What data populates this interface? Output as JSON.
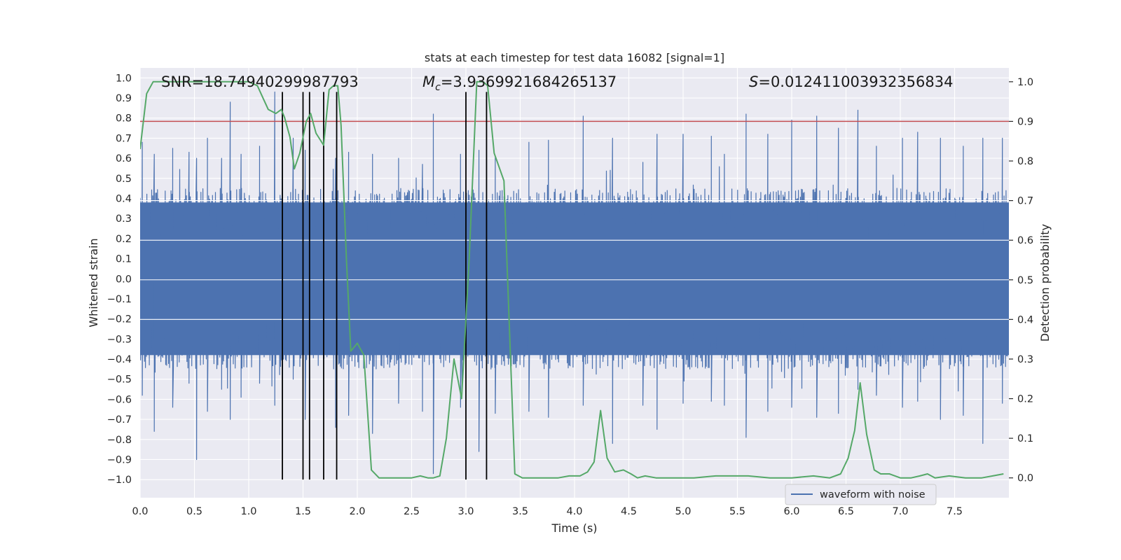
{
  "chart_data": {
    "type": "line",
    "title": "stats at each timestep for test data 16082 [signal=1]",
    "xlabel": "Time (s)",
    "ylabel_left": "Whitened strain",
    "ylabel_right": "Detection probability",
    "xlim": [
      0,
      8
    ],
    "ylim_left": [
      -1.09,
      1.05
    ],
    "ylim_right": [
      -0.05,
      1.035
    ],
    "x_ticks": [
      "0.0",
      "0.5",
      "1.0",
      "1.5",
      "2.0",
      "2.5",
      "3.0",
      "3.5",
      "4.0",
      "4.5",
      "5.0",
      "5.5",
      "6.0",
      "6.5",
      "7.0",
      "7.5"
    ],
    "y_ticks_left": [
      "1.0",
      "0.9",
      "0.8",
      "0.7",
      "0.6",
      "0.5",
      "0.4",
      "0.3",
      "0.2",
      "0.1",
      "0.0",
      "−0.1",
      "−0.2",
      "−0.3",
      "−0.4",
      "−0.5",
      "−0.6",
      "−0.7",
      "−0.8",
      "−0.9",
      "−1.0"
    ],
    "y_ticks_right": [
      "1.0",
      "0.9",
      "0.8",
      "0.7",
      "0.6",
      "0.5",
      "0.4",
      "0.3",
      "0.2",
      "0.1",
      "0.0"
    ],
    "grid": true,
    "annotations": {
      "snr": "SNR=18.74940299987793",
      "mc_symbol": "M",
      "mc_sub": "c",
      "mc_value": "=3.9369921684265137",
      "s_symbol": "S",
      "s_value": "=0.012411003932356834"
    },
    "threshold": {
      "value": 0.9,
      "axis": "right",
      "color": "#c44e52"
    },
    "event_lines": {
      "x": [
        1.31,
        1.5,
        1.56,
        1.69,
        1.81,
        3.0,
        3.19
      ],
      "y_range_left": [
        -1.0,
        0.93
      ],
      "color": "#000000"
    },
    "series": [
      {
        "name": "waveform with noise",
        "axis": "left",
        "color": "#4c72b0",
        "style": "dense-noise",
        "envelope_typical": 0.45,
        "spikes": [
          [
            0.02,
            0.68,
            -0.58
          ],
          [
            0.13,
            0.62,
            -0.76
          ],
          [
            0.3,
            0.65,
            -0.64
          ],
          [
            0.45,
            0.63,
            -0.52
          ],
          [
            0.52,
            0.6,
            -0.9
          ],
          [
            0.62,
            0.7,
            -0.66
          ],
          [
            0.75,
            0.6,
            -0.55
          ],
          [
            0.83,
            0.88,
            -0.7
          ],
          [
            0.93,
            0.62,
            -0.59
          ],
          [
            1.1,
            0.66,
            -0.52
          ],
          [
            1.24,
            0.93,
            -0.63
          ],
          [
            1.31,
            0.68,
            -0.87
          ],
          [
            1.41,
            0.7,
            -0.5
          ],
          [
            1.52,
            0.64,
            -0.7
          ],
          [
            1.8,
            0.6,
            -0.74
          ],
          [
            1.92,
            0.63,
            -0.68
          ],
          [
            2.14,
            0.62,
            -0.77
          ],
          [
            2.38,
            0.6,
            -0.62
          ],
          [
            2.6,
            0.57,
            -0.66
          ],
          [
            2.7,
            0.82,
            -0.97
          ],
          [
            2.95,
            0.62,
            -0.64
          ],
          [
            3.12,
            0.64,
            -0.86
          ],
          [
            3.27,
            0.61,
            -0.67
          ],
          [
            3.58,
            0.68,
            -0.66
          ],
          [
            3.76,
            0.69,
            -0.69
          ],
          [
            4.08,
            0.81,
            -0.63
          ],
          [
            4.35,
            0.7,
            -0.82
          ],
          [
            4.63,
            0.58,
            -0.63
          ],
          [
            4.76,
            0.72,
            -0.75
          ],
          [
            5.0,
            0.72,
            -0.62
          ],
          [
            5.26,
            0.71,
            -0.61
          ],
          [
            5.38,
            0.62,
            -0.63
          ],
          [
            5.58,
            0.82,
            -0.79
          ],
          [
            5.78,
            0.72,
            -0.66
          ],
          [
            6.0,
            0.79,
            -0.64
          ],
          [
            6.23,
            0.81,
            -0.69
          ],
          [
            6.43,
            0.75,
            -0.67
          ],
          [
            6.61,
            0.84,
            -0.55
          ],
          [
            6.78,
            0.66,
            -0.58
          ],
          [
            7.02,
            0.7,
            -0.64
          ],
          [
            7.16,
            0.73,
            -0.61
          ],
          [
            7.37,
            0.7,
            -0.7
          ],
          [
            7.58,
            0.66,
            -0.68
          ],
          [
            7.76,
            0.7,
            -0.82
          ],
          [
            7.94,
            0.7,
            -0.62
          ]
        ]
      },
      {
        "name": "",
        "axis": "right",
        "color": "#55a868",
        "x": [
          0,
          0.06,
          0.12,
          0.5,
          0.8,
          1.0,
          1.08,
          1.13,
          1.18,
          1.25,
          1.3,
          1.33,
          1.38,
          1.42,
          1.47,
          1.53,
          1.57,
          1.62,
          1.69,
          1.74,
          1.78,
          1.82,
          1.85,
          1.9,
          1.94,
          2.0,
          2.06,
          2.13,
          2.2,
          2.35,
          2.5,
          2.58,
          2.65,
          2.7,
          2.76,
          2.82,
          2.89,
          2.96,
          3.03,
          3.1,
          3.16,
          3.2,
          3.26,
          3.35,
          3.45,
          3.52,
          3.6,
          3.7,
          3.85,
          3.95,
          4.05,
          4.12,
          4.18,
          4.24,
          4.3,
          4.37,
          4.45,
          4.52,
          4.58,
          4.65,
          4.75,
          4.9,
          5.1,
          5.3,
          5.6,
          5.8,
          6.0,
          6.2,
          6.35,
          6.45,
          6.52,
          6.58,
          6.63,
          6.69,
          6.76,
          6.82,
          6.9,
          7.0,
          7.1,
          7.18,
          7.25,
          7.32,
          7.45,
          7.6,
          7.75,
          7.85,
          7.95
        ],
        "y": [
          0.83,
          0.97,
          1.0,
          1.0,
          1.0,
          1.0,
          0.99,
          0.96,
          0.93,
          0.92,
          0.93,
          0.91,
          0.86,
          0.78,
          0.82,
          0.9,
          0.92,
          0.87,
          0.84,
          0.98,
          0.99,
          0.99,
          0.89,
          0.55,
          0.32,
          0.34,
          0.31,
          0.02,
          0.0,
          0.0,
          0.0,
          0.005,
          0.0,
          0.0,
          0.005,
          0.1,
          0.3,
          0.2,
          0.55,
          1.0,
          1.0,
          0.99,
          0.82,
          0.75,
          0.01,
          0.0,
          0.0,
          0.0,
          0.0,
          0.005,
          0.005,
          0.015,
          0.04,
          0.17,
          0.05,
          0.015,
          0.02,
          0.01,
          0.0,
          0.005,
          0.0,
          0.0,
          0.0,
          0.005,
          0.005,
          0.0,
          0.0,
          0.005,
          0.0,
          0.01,
          0.05,
          0.12,
          0.24,
          0.11,
          0.02,
          0.01,
          0.01,
          0.0,
          0.0,
          0.005,
          0.01,
          0.0,
          0.005,
          0.0,
          0.0,
          0.005,
          0.01
        ]
      }
    ],
    "legend": {
      "entries": [
        "waveform with noise"
      ],
      "position": "lower-right"
    }
  }
}
